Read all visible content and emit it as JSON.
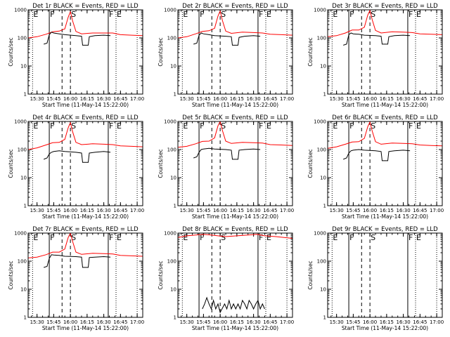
{
  "figure": {
    "ylabel": "Counts/sec",
    "xlabel": "Start Time (11-May-14 15:22:00)",
    "x_ticks": [
      "15:30",
      "15:45",
      "16:00",
      "16:15",
      "16:30",
      "16:45",
      "17:00"
    ],
    "y_ticks": [
      "1",
      "10",
      "100",
      "1000"
    ],
    "event_markers": [
      {
        "label": "E",
        "time": "15:26:00",
        "style": "dotted"
      },
      {
        "label": "F",
        "time": "15:41:00",
        "style": "solid"
      },
      {
        "label": "S",
        "time": "16:00:00",
        "style": "dashed"
      },
      {
        "label": "F",
        "time": "16:34:00",
        "style": "solid"
      },
      {
        "label": "E",
        "time": "16:41:00",
        "style": "dotted"
      }
    ],
    "event_lines_extra": [
      {
        "time": "15:52:30",
        "style": "dashed"
      },
      {
        "time": "17:00:00",
        "style": "dotted"
      }
    ],
    "colors": {
      "events": "#000000",
      "lld": "#ff0000",
      "axes": "#000000",
      "background": "#ffffff"
    }
  },
  "chart_data": [
    {
      "type": "line",
      "title": "Det 1r BLACK = Events, RED = LLD",
      "xlim": [
        "15:22",
        "17:05"
      ],
      "ylim": [
        1,
        1000
      ],
      "yscale": "log",
      "series": [
        {
          "name": "LLD",
          "color": "red",
          "x": [
            "15:22",
            "15:30",
            "15:38",
            "15:44",
            "15:50",
            "15:55",
            "15:58",
            "16:00",
            "16:02",
            "16:05",
            "16:10",
            "16:20",
            "16:30",
            "16:38",
            "16:45",
            "16:55",
            "17:05"
          ],
          "values": [
            100,
            110,
            135,
            165,
            175,
            210,
            550,
            850,
            400,
            170,
            140,
            150,
            150,
            150,
            130,
            125,
            120
          ]
        },
        {
          "name": "Events",
          "color": "black",
          "x": [
            "15:36",
            "15:39",
            "15:41",
            "15:43",
            "15:45",
            "15:50",
            "15:55",
            "16:05",
            "16:10",
            "16:11",
            "16:16",
            "16:17",
            "16:22",
            "16:30",
            "16:36"
          ],
          "values": [
            60,
            65,
            130,
            160,
            150,
            140,
            130,
            120,
            115,
            55,
            55,
            110,
            120,
            125,
            120
          ]
        }
      ]
    },
    {
      "type": "line",
      "title": "Det 2r BLACK = Events, RED = LLD",
      "xlim": [
        "15:22",
        "17:05"
      ],
      "ylim": [
        1,
        1000
      ],
      "yscale": "log",
      "series": [
        {
          "name": "LLD",
          "color": "red",
          "x": [
            "15:22",
            "15:30",
            "15:38",
            "15:44",
            "15:50",
            "15:55",
            "15:58",
            "16:00",
            "16:02",
            "16:05",
            "16:10",
            "16:20",
            "16:30",
            "16:38",
            "16:45",
            "16:55",
            "17:05"
          ],
          "values": [
            100,
            110,
            140,
            170,
            180,
            220,
            600,
            900,
            420,
            175,
            145,
            160,
            155,
            150,
            135,
            130,
            125
          ]
        },
        {
          "name": "Events",
          "color": "black",
          "x": [
            "15:36",
            "15:39",
            "15:41",
            "15:43",
            "15:45",
            "15:50",
            "15:55",
            "16:05",
            "16:10",
            "16:11",
            "16:16",
            "16:17",
            "16:22",
            "16:30",
            "16:36"
          ],
          "values": [
            60,
            65,
            125,
            150,
            140,
            130,
            120,
            115,
            110,
            55,
            55,
            105,
            115,
            120,
            115
          ]
        }
      ]
    },
    {
      "type": "line",
      "title": "Det 3r BLACK = Events, RED = LLD",
      "xlim": [
        "15:22",
        "17:05"
      ],
      "ylim": [
        1,
        1000
      ],
      "yscale": "log",
      "series": [
        {
          "name": "LLD",
          "color": "red",
          "x": [
            "15:22",
            "15:30",
            "15:38",
            "15:44",
            "15:50",
            "15:55",
            "15:58",
            "16:00",
            "16:02",
            "16:05",
            "16:10",
            "16:20",
            "16:30",
            "16:38",
            "16:45",
            "16:55",
            "17:05"
          ],
          "values": [
            110,
            120,
            150,
            190,
            190,
            240,
            650,
            950,
            450,
            185,
            150,
            165,
            160,
            155,
            140,
            135,
            130
          ]
        },
        {
          "name": "Events",
          "color": "black",
          "x": [
            "15:36",
            "15:39",
            "15:41",
            "15:43",
            "15:45",
            "15:50",
            "15:55",
            "16:05",
            "16:10",
            "16:11",
            "16:16",
            "16:17",
            "16:22",
            "16:30",
            "16:36"
          ],
          "values": [
            55,
            60,
            130,
            150,
            140,
            135,
            125,
            120,
            115,
            60,
            60,
            110,
            120,
            125,
            120
          ]
        }
      ]
    },
    {
      "type": "line",
      "title": "Det 4r BLACK = Events, RED = LLD",
      "xlim": [
        "15:22",
        "17:05"
      ],
      "ylim": [
        1,
        1000
      ],
      "yscale": "log",
      "series": [
        {
          "name": "LLD",
          "color": "red",
          "x": [
            "15:22",
            "15:30",
            "15:38",
            "15:44",
            "15:50",
            "15:55",
            "15:58",
            "16:00",
            "16:02",
            "16:05",
            "16:10",
            "16:20",
            "16:30",
            "16:38",
            "16:45",
            "16:55",
            "17:05"
          ],
          "values": [
            100,
            115,
            145,
            175,
            180,
            230,
            600,
            900,
            430,
            180,
            150,
            160,
            155,
            150,
            135,
            130,
            125
          ]
        },
        {
          "name": "Events",
          "color": "black",
          "x": [
            "15:36",
            "15:39",
            "15:41",
            "15:43",
            "15:45",
            "15:50",
            "15:55",
            "16:05",
            "16:10",
            "16:11",
            "16:16",
            "16:17",
            "16:22",
            "16:30",
            "16:36"
          ],
          "values": [
            45,
            50,
            70,
            80,
            85,
            90,
            85,
            80,
            75,
            35,
            35,
            75,
            80,
            85,
            80
          ]
        }
      ]
    },
    {
      "type": "line",
      "title": "Det 5r BLACK = Events, RED = LLD",
      "xlim": [
        "15:22",
        "17:05"
      ],
      "ylim": [
        1,
        1000
      ],
      "yscale": "log",
      "series": [
        {
          "name": "LLD",
          "color": "red",
          "x": [
            "15:22",
            "15:30",
            "15:38",
            "15:44",
            "15:50",
            "15:55",
            "15:58",
            "16:00",
            "16:02",
            "16:05",
            "16:10",
            "16:20",
            "16:30",
            "16:38",
            "16:45",
            "16:55",
            "17:05"
          ],
          "values": [
            120,
            130,
            160,
            195,
            200,
            260,
            700,
            1000,
            480,
            200,
            165,
            180,
            175,
            170,
            150,
            145,
            140
          ]
        },
        {
          "name": "Events",
          "color": "black",
          "x": [
            "15:36",
            "15:39",
            "15:41",
            "15:43",
            "15:45",
            "15:50",
            "15:55",
            "16:05",
            "16:10",
            "16:11",
            "16:16",
            "16:17",
            "16:22",
            "16:30",
            "16:36"
          ],
          "values": [
            50,
            55,
            80,
            100,
            105,
            110,
            105,
            100,
            95,
            45,
            45,
            95,
            100,
            105,
            100
          ]
        }
      ]
    },
    {
      "type": "line",
      "title": "Det 6r BLACK = Events, RED = LLD",
      "xlim": [
        "15:22",
        "17:05"
      ],
      "ylim": [
        1,
        1000
      ],
      "yscale": "log",
      "series": [
        {
          "name": "LLD",
          "color": "red",
          "x": [
            "15:22",
            "15:30",
            "15:38",
            "15:44",
            "15:50",
            "15:55",
            "15:58",
            "16:00",
            "16:02",
            "16:05",
            "16:10",
            "16:20",
            "16:30",
            "16:38",
            "16:45",
            "16:55",
            "17:05"
          ],
          "values": [
            110,
            125,
            155,
            185,
            190,
            250,
            650,
            950,
            460,
            190,
            155,
            170,
            165,
            160,
            145,
            140,
            135
          ]
        },
        {
          "name": "Events",
          "color": "black",
          "x": [
            "15:36",
            "15:39",
            "15:41",
            "15:43",
            "15:45",
            "15:50",
            "15:55",
            "16:05",
            "16:10",
            "16:11",
            "16:16",
            "16:17",
            "16:22",
            "16:30",
            "16:36"
          ],
          "values": [
            45,
            50,
            75,
            90,
            95,
            100,
            95,
            90,
            85,
            40,
            40,
            85,
            90,
            95,
            90
          ]
        }
      ]
    },
    {
      "type": "line",
      "title": "Det 7r BLACK = Events, RED = LLD",
      "xlim": [
        "15:22",
        "17:05"
      ],
      "ylim": [
        1,
        1000
      ],
      "yscale": "log",
      "series": [
        {
          "name": "LLD",
          "color": "red",
          "x": [
            "15:22",
            "15:30",
            "15:38",
            "15:44",
            "15:50",
            "15:55",
            "15:58",
            "16:00",
            "16:02",
            "16:05",
            "16:10",
            "16:20",
            "16:30",
            "16:38",
            "16:45",
            "16:55",
            "17:05"
          ],
          "values": [
            130,
            140,
            170,
            210,
            210,
            270,
            700,
            1000,
            500,
            210,
            175,
            190,
            185,
            180,
            160,
            155,
            150
          ]
        },
        {
          "name": "Events",
          "color": "black",
          "x": [
            "15:36",
            "15:39",
            "15:41",
            "15:43",
            "15:45",
            "15:50",
            "15:55",
            "16:05",
            "16:10",
            "16:11",
            "16:16",
            "16:17",
            "16:22",
            "16:30",
            "16:36"
          ],
          "values": [
            60,
            65,
            125,
            170,
            165,
            160,
            150,
            145,
            140,
            60,
            60,
            135,
            140,
            145,
            140
          ]
        }
      ]
    },
    {
      "type": "line",
      "title": "Det 8r BLACK = Events, RED = LLD",
      "xlim": [
        "15:22",
        "17:05"
      ],
      "ylim": [
        1,
        1000
      ],
      "yscale": "log",
      "series": [
        {
          "name": "LLD",
          "color": "red",
          "x": [
            "15:22",
            "15:30",
            "15:38",
            "15:45",
            "15:52",
            "15:58",
            "16:05",
            "16:15",
            "16:25",
            "16:33",
            "16:40",
            "16:50",
            "17:05"
          ],
          "values": [
            700,
            800,
            850,
            900,
            850,
            800,
            750,
            800,
            850,
            900,
            800,
            750,
            650
          ]
        },
        {
          "name": "Events",
          "color": "black",
          "x": [
            "15:44",
            "15:46",
            "15:48",
            "15:50",
            "15:52",
            "15:54",
            "15:56",
            "15:58",
            "16:00",
            "16:04",
            "16:06",
            "16:08",
            "16:10",
            "16:12",
            "16:14",
            "16:16",
            "16:18",
            "16:20",
            "16:22",
            "16:24",
            "16:26",
            "16:28",
            "16:30",
            "16:32",
            "16:34",
            "16:36",
            "16:38",
            "16:40"
          ],
          "values": [
            2,
            3,
            5,
            3,
            2,
            4,
            2,
            3,
            1.5,
            3,
            2,
            4,
            2,
            3,
            2,
            3,
            2,
            4,
            3,
            2,
            4,
            3,
            2,
            3,
            4,
            2,
            3,
            2
          ]
        }
      ]
    },
    {
      "type": "line",
      "title": "Det 9r BLACK = Events, RED = LLD",
      "xlim": [
        "15:22",
        "17:05"
      ],
      "ylim": [
        1,
        1000
      ],
      "yscale": "log",
      "series": []
    }
  ]
}
